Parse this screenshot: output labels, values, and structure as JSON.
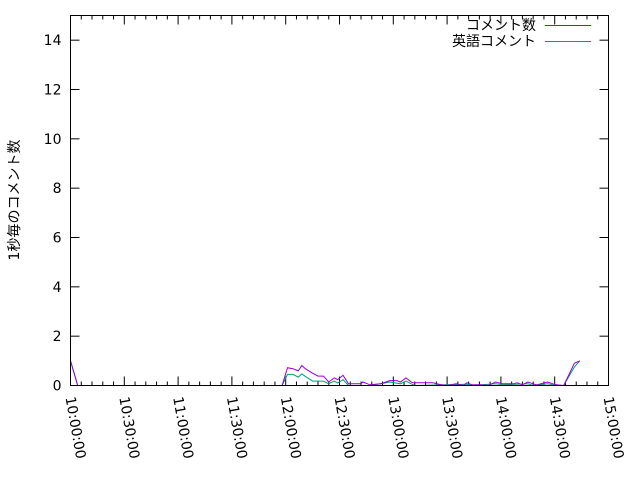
{
  "chart_data": {
    "type": "line",
    "title": "",
    "xlabel": "",
    "ylabel": "1秒毎のコメント数",
    "xlim": [
      "10:00:00",
      "15:00:00"
    ],
    "ylim": [
      0,
      15
    ],
    "x_ticks": [
      "10:00:00",
      "10:30:00",
      "11:00:00",
      "11:30:00",
      "12:00:00",
      "12:30:00",
      "13:00:00",
      "13:30:00",
      "14:00:00",
      "14:30:00",
      "15:00:00"
    ],
    "y_ticks": [
      "0",
      "2",
      "4",
      "6",
      "8",
      "10",
      "12",
      "14"
    ],
    "grid": false,
    "legend_position": "top-right",
    "series": [
      {
        "name": "コメント数",
        "color": "#9400d3",
        "points": [
          [
            "10:00",
            1.0
          ],
          [
            "10:04",
            0
          ],
          [
            "11:58",
            0
          ],
          [
            "12:01",
            0.72
          ],
          [
            "12:04",
            0.68
          ],
          [
            "12:07",
            0.59
          ],
          [
            "12:09",
            0.81
          ],
          [
            "12:11",
            0.68
          ],
          [
            "12:15",
            0.5
          ],
          [
            "12:18",
            0.38
          ],
          [
            "12:21",
            0.38
          ],
          [
            "12:24",
            0.14
          ],
          [
            "12:27",
            0.31
          ],
          [
            "12:29",
            0.24
          ],
          [
            "12:32",
            0.41
          ],
          [
            "12:35",
            0.07
          ],
          [
            "12:42",
            0.07
          ],
          [
            "12:43",
            0.14
          ],
          [
            "12:47",
            0.03
          ],
          [
            "12:53",
            0.07
          ],
          [
            "12:58",
            0.2
          ],
          [
            "13:02",
            0.2
          ],
          [
            "13:04",
            0.14
          ],
          [
            "13:07",
            0.31
          ],
          [
            "13:10",
            0.14
          ],
          [
            "13:11",
            0.11
          ],
          [
            "13:22",
            0.11
          ],
          [
            "13:26",
            0.04
          ],
          [
            "13:30",
            0
          ],
          [
            "13:35",
            0.07
          ],
          [
            "13:39",
            0
          ],
          [
            "13:41",
            0.11
          ],
          [
            "13:44",
            0.03
          ],
          [
            "13:49",
            0.03
          ],
          [
            "13:53",
            0
          ],
          [
            "13:57",
            0.14
          ],
          [
            "14:01",
            0.07
          ],
          [
            "14:07",
            0.07
          ],
          [
            "14:09",
            0.11
          ],
          [
            "14:12",
            0.03
          ],
          [
            "14:15",
            0.14
          ],
          [
            "14:18",
            0.07
          ],
          [
            "14:20",
            0.03
          ],
          [
            "14:26",
            0.14
          ],
          [
            "14:29",
            0.07
          ],
          [
            "14:31",
            0.03
          ],
          [
            "14:35",
            0
          ],
          [
            "14:41",
            0.9
          ],
          [
            "14:44",
            1.0
          ]
        ]
      },
      {
        "name": "英語コメント",
        "color": "#009e73",
        "points": [
          [
            "10:00",
            1.0
          ],
          [
            "10:04",
            0
          ],
          [
            "11:58",
            0
          ],
          [
            "12:01",
            0.45
          ],
          [
            "12:04",
            0.45
          ],
          [
            "12:07",
            0.34
          ],
          [
            "12:09",
            0.47
          ],
          [
            "12:11",
            0.37
          ],
          [
            "12:15",
            0.18
          ],
          [
            "12:21",
            0.18
          ],
          [
            "12:24",
            0.07
          ],
          [
            "12:27",
            0.18
          ],
          [
            "12:29",
            0.1
          ],
          [
            "12:32",
            0.24
          ],
          [
            "12:35",
            0
          ],
          [
            "12:47",
            0
          ],
          [
            "12:53",
            0.07
          ],
          [
            "12:58",
            0.14
          ],
          [
            "13:04",
            0.07
          ],
          [
            "13:07",
            0.18
          ],
          [
            "13:10",
            0.07
          ],
          [
            "13:12",
            0
          ],
          [
            "13:41",
            0.05
          ],
          [
            "13:44",
            0
          ],
          [
            "13:57",
            0.07
          ],
          [
            "14:01",
            0.03
          ],
          [
            "14:15",
            0.07
          ],
          [
            "14:18",
            0
          ],
          [
            "14:26",
            0.07
          ],
          [
            "14:31",
            0
          ],
          [
            "14:35",
            0
          ],
          [
            "14:41",
            0.75
          ],
          [
            "14:44",
            1.0
          ]
        ]
      }
    ]
  }
}
